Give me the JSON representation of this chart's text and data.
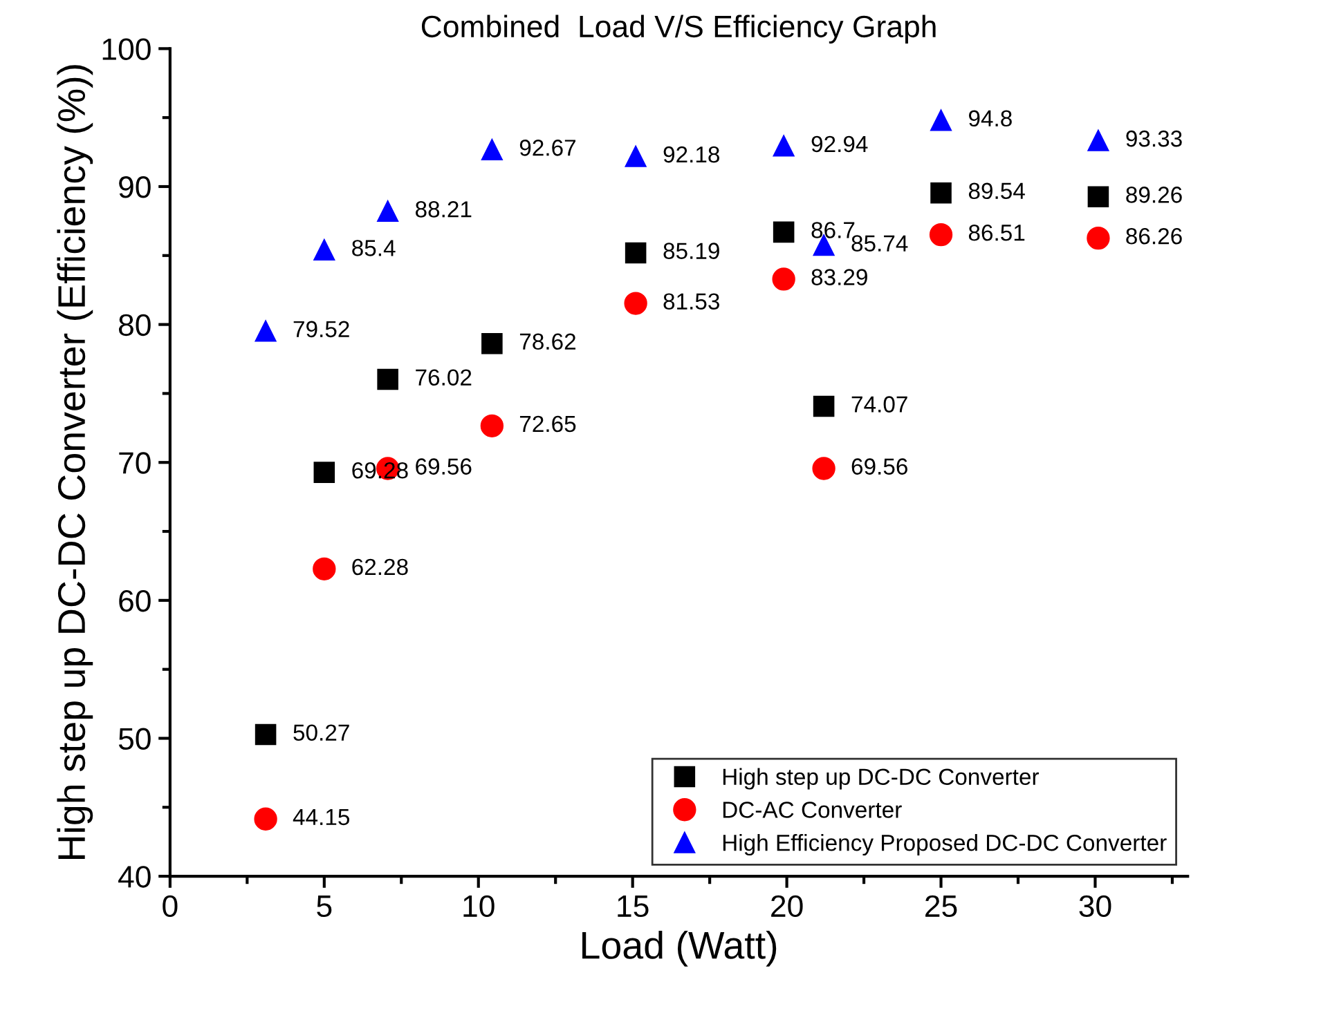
{
  "chart_data": {
    "type": "scatter",
    "title": "Combined  Load V/S Efficiency Graph",
    "xlabel": "Load (Watt)",
    "ylabel": "High step up DC-DC Converter (Efficiency (%))",
    "x": [
      3.1,
      5.0,
      7.06,
      10.44,
      15.1,
      19.9,
      21.2,
      25.0,
      30.1
    ],
    "series": [
      {
        "name": "High step up DC-DC Converter",
        "color": "#000000",
        "marker": "square",
        "values": [
          50.27,
          69.28,
          76.02,
          78.62,
          85.19,
          86.7,
          74.07,
          89.54,
          89.26
        ]
      },
      {
        "name": "DC-AC Converter",
        "color": "#ff0000",
        "marker": "circle",
        "values": [
          44.15,
          62.28,
          69.56,
          72.65,
          81.53,
          83.29,
          69.56,
          86.51,
          86.26
        ]
      },
      {
        "name": "High Efficiency Proposed DC-DC Converter",
        "color": "#0000ff",
        "marker": "triangle",
        "values": [
          79.52,
          85.4,
          88.21,
          92.67,
          92.18,
          92.94,
          85.74,
          94.8,
          93.33
        ]
      }
    ],
    "xlim": [
      0,
      33
    ],
    "xticks": [
      0,
      5,
      10,
      15,
      20,
      25,
      30
    ],
    "ylim": [
      40,
      100
    ],
    "yticks": [
      40,
      50,
      60,
      70,
      80,
      90,
      100
    ],
    "data_labels": true,
    "grid": false,
    "legend": "bottom right"
  }
}
